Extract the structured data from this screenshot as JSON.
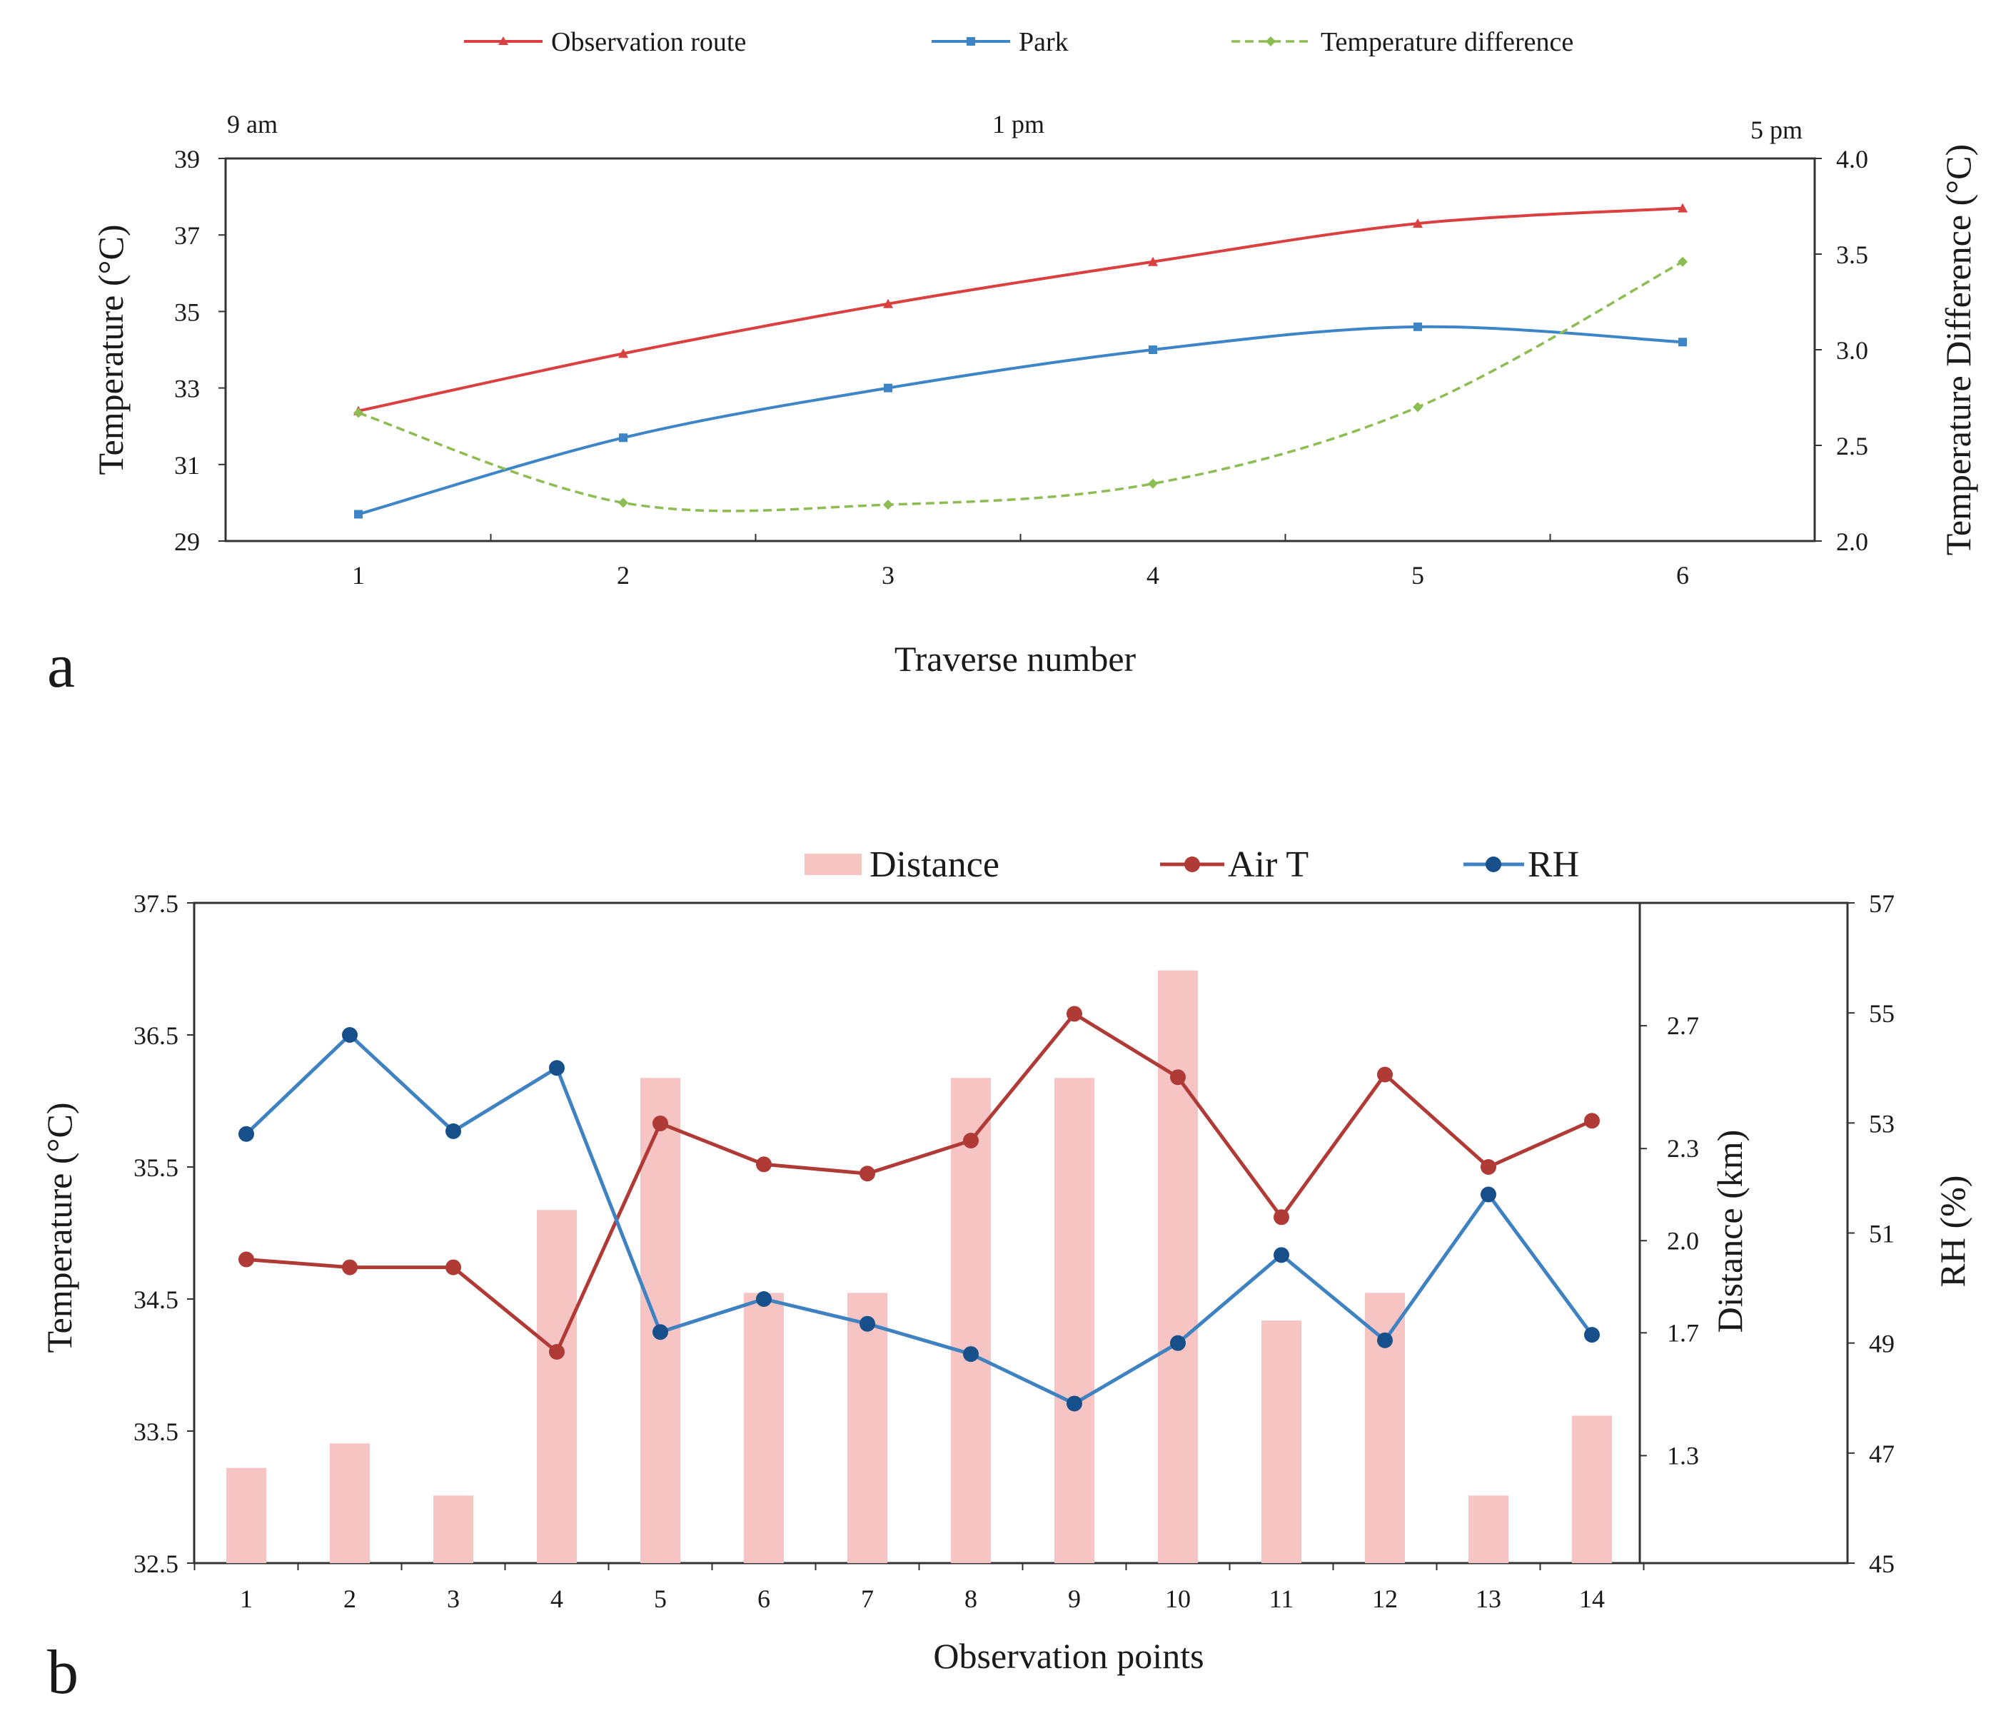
{
  "chart_data": [
    {
      "type": "line",
      "panel_label": "a",
      "xlabel": "Traverse number",
      "ylabel": "Temperature (°C)",
      "y2label": "Temperature Difference (°C)",
      "x": [
        1,
        2,
        3,
        4,
        5,
        6
      ],
      "x_tick_labels": [
        "1",
        "2",
        "3",
        "4",
        "5",
        "6"
      ],
      "ylim": [
        29,
        39
      ],
      "y_ticks": [
        "29",
        "31",
        "33",
        "35",
        "37",
        "39"
      ],
      "y2lim": [
        2.0,
        4.0
      ],
      "y2_ticks": [
        "2.0",
        "2.5",
        "3.0",
        "3.5",
        "4.0"
      ],
      "time_labels": [
        "9 am",
        "1 pm",
        "5 pm"
      ],
      "grid": false,
      "legend_position": "top",
      "series": [
        {
          "name": "Observation route",
          "axis": "left",
          "color": "#d9403f",
          "dash": "solid",
          "marker": "triangle",
          "values": [
            32.4,
            33.9,
            35.2,
            36.3,
            37.3,
            37.7
          ]
        },
        {
          "name": "Park",
          "axis": "left",
          "color": "#3d85c6",
          "dash": "solid",
          "marker": "square",
          "values": [
            29.7,
            31.7,
            33.0,
            34.0,
            34.6,
            34.2
          ]
        },
        {
          "name": "Temperature difference",
          "axis": "right",
          "color": "#8bbd52",
          "dash": "dashed",
          "marker": "diamond",
          "values": [
            2.67,
            2.2,
            2.19,
            2.3,
            2.7,
            3.46
          ]
        }
      ]
    },
    {
      "type": "bar",
      "panel_label": "b",
      "xlabel": "Observation points",
      "ylabel": "Temperature (°C)",
      "y2label": "Distance (km)",
      "y3label": "RH (%)",
      "categories": [
        "1",
        "2",
        "3",
        "4",
        "5",
        "6",
        "7",
        "8",
        "9",
        "10",
        "11",
        "12",
        "13",
        "14"
      ],
      "ylim": [
        32.5,
        37.5
      ],
      "y_ticks": [
        "32.5",
        "33.5",
        "34.5",
        "35.5",
        "36.5",
        "37.5"
      ],
      "y2lim": [
        0.95,
        3.1
      ],
      "y2_ticks": [
        "1.3",
        "1.7",
        "2.0",
        "2.3",
        "2.7"
      ],
      "y3lim": [
        45,
        57
      ],
      "y3_ticks": [
        "45",
        "47",
        "49",
        "51",
        "53",
        "55",
        "57"
      ],
      "grid": false,
      "legend_position": "top",
      "series": [
        {
          "name": "Distance",
          "kind": "bar",
          "axis": "distance",
          "color": "#f7c4c4",
          "values": [
            1.26,
            1.34,
            1.17,
            2.1,
            2.53,
            1.83,
            1.83,
            2.53,
            2.53,
            2.88,
            1.74,
            1.83,
            1.17,
            1.43
          ]
        },
        {
          "name": "Air T",
          "kind": "line",
          "axis": "left",
          "color": "#b03a36",
          "values": [
            34.8,
            34.74,
            34.74,
            34.1,
            35.83,
            35.52,
            35.45,
            35.7,
            36.66,
            36.18,
            35.12,
            36.2,
            35.5,
            35.85
          ]
        },
        {
          "name": "RH",
          "kind": "line",
          "axis": "rh",
          "color": "#3f82c1",
          "values": [
            52.8,
            54.6,
            52.85,
            54.0,
            49.2,
            49.8,
            49.35,
            48.8,
            47.9,
            49.0,
            50.6,
            49.05,
            51.7,
            49.15
          ]
        }
      ]
    }
  ]
}
